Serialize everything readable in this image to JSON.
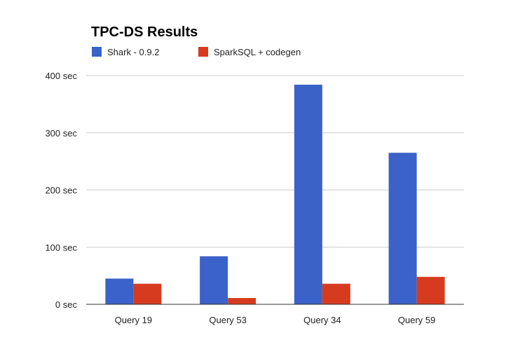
{
  "chart_data": {
    "type": "bar",
    "title": "TPC-DS Results",
    "xlabel": "",
    "ylabel": "",
    "categories": [
      "Query 19",
      "Query 53",
      "Query 34",
      "Query 59"
    ],
    "series": [
      {
        "name": "Shark - 0.9.2",
        "color": "#3b62c8",
        "values": [
          45,
          84,
          384,
          265
        ]
      },
      {
        "name": "SparkSQL + codegen",
        "color": "#d63b1f",
        "values": [
          36,
          11,
          36,
          48
        ]
      }
    ],
    "yticks": [
      "0 sec",
      "100 sec",
      "200 sec",
      "300 sec",
      "400 sec"
    ],
    "ylim": [
      0,
      400
    ],
    "grid": true,
    "legend_position": "top-left"
  }
}
